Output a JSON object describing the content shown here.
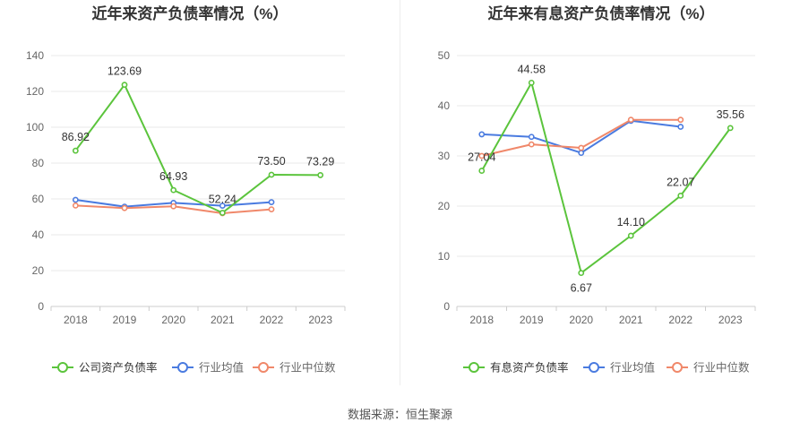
{
  "colors": {
    "company": "#5bc43c",
    "industry_avg": "#4a7be0",
    "industry_median": "#f0886a",
    "grid": "#e8e8e8",
    "axis": "#cccccc",
    "divider": "#eeeeee"
  },
  "chart_data": [
    {
      "type": "line",
      "title": "近年来资产负债率情况（%）",
      "categories": [
        "2018",
        "2019",
        "2020",
        "2021",
        "2022",
        "2023"
      ],
      "ylim": [
        0,
        140
      ],
      "yticks": [
        0,
        20,
        40,
        60,
        80,
        100,
        120,
        140
      ],
      "grid": true,
      "legend_placement": "bottom",
      "series": [
        {
          "name": "公司资产负债率",
          "color": "#5bc43c",
          "values": [
            86.92,
            123.69,
            64.93,
            52.24,
            73.5,
            73.29
          ],
          "labels": [
            "86.92",
            "123.69",
            "64.93",
            "52.24",
            "73.50",
            "73.29"
          ]
        },
        {
          "name": "行业均值",
          "color": "#4a7be0",
          "values": [
            59.5,
            55.7,
            57.8,
            56.2,
            58.2,
            null
          ]
        },
        {
          "name": "行业中位数",
          "color": "#f0886a",
          "values": [
            56.3,
            54.9,
            55.9,
            52.0,
            54.2,
            null
          ]
        }
      ]
    },
    {
      "type": "line",
      "title": "近年来有息资产负债率情况（%）",
      "categories": [
        "2018",
        "2019",
        "2020",
        "2021",
        "2022",
        "2023"
      ],
      "ylim": [
        0,
        50
      ],
      "yticks": [
        0,
        10,
        20,
        30,
        40,
        50
      ],
      "grid": true,
      "legend_placement": "bottom",
      "series": [
        {
          "name": "有息资产负债率",
          "color": "#5bc43c",
          "values": [
            27.04,
            44.58,
            6.67,
            14.1,
            22.07,
            35.56
          ],
          "labels": [
            "27.04",
            "44.58",
            "6.67",
            "14.10",
            "22.07",
            "35.56"
          ]
        },
        {
          "name": "行业均值",
          "color": "#4a7be0",
          "values": [
            34.3,
            33.8,
            30.6,
            37.0,
            35.8,
            null
          ]
        },
        {
          "name": "行业中位数",
          "color": "#f0886a",
          "values": [
            30.0,
            32.3,
            31.6,
            37.2,
            37.2,
            null
          ]
        }
      ]
    }
  ],
  "source": "数据来源：恒生聚源"
}
